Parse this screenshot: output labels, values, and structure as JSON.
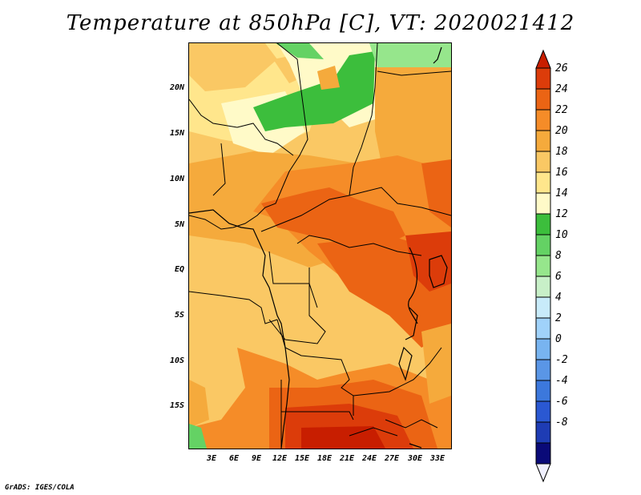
{
  "title": "Temperature at 850hPa [C], VT: 2020021412",
  "credit": "GrADS: IGES/COLA",
  "map": {
    "lat_labels": [
      "20N",
      "15N",
      "10N",
      "5N",
      "EQ",
      "5S",
      "10S",
      "15S"
    ],
    "lon_labels": [
      "3E",
      "6E",
      "9E",
      "12E",
      "15E",
      "18E",
      "21E",
      "24E",
      "27E",
      "30E",
      "33E"
    ]
  },
  "colorbar": {
    "labels": [
      "26",
      "24",
      "22",
      "20",
      "18",
      "16",
      "14",
      "12",
      "10",
      "8",
      "6",
      "4",
      "2",
      "0",
      "-2",
      "-4",
      "-6",
      "-8"
    ],
    "colors": [
      "#f0f0ff",
      "#0a0a78",
      "#1e3cb4",
      "#2a58d2",
      "#3c78dc",
      "#5a96e6",
      "#78b4f0",
      "#a0d2fa",
      "#c8ebfa",
      "#c8f0c8",
      "#96e68c",
      "#64d264",
      "#3cbe3c",
      "#fffac8",
      "#ffe68c",
      "#fac864",
      "#f5aa3c",
      "#f58c28",
      "#eb6414",
      "#dc3c0a",
      "#c81e00"
    ]
  }
}
